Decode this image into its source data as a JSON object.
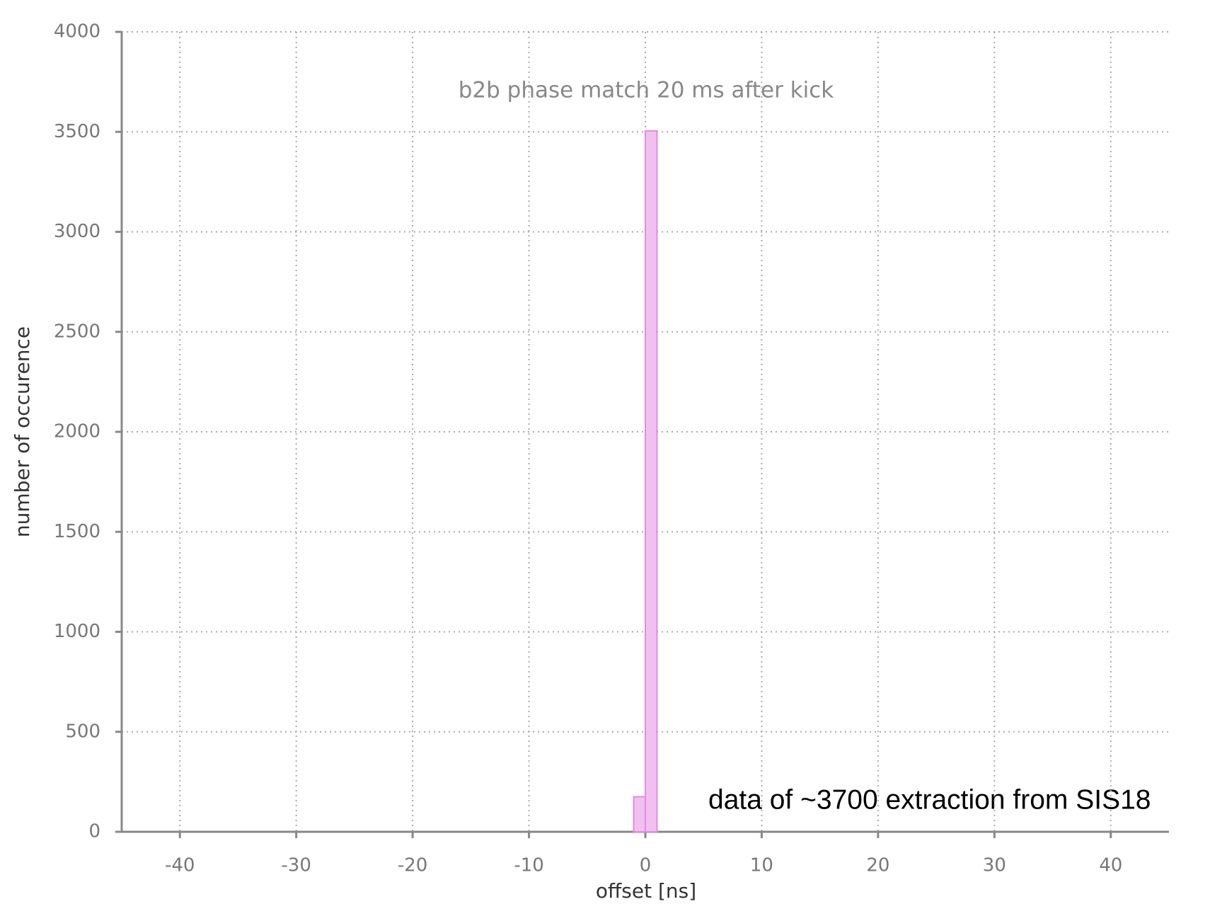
{
  "chart_data": {
    "type": "histogram",
    "title": "b2b phase match 20 ms after kick",
    "annotation": "data of ~3700 extraction from SIS18",
    "x_label": "offset [ns]",
    "y_label": "number of occurence",
    "bins": [
      -1,
      0,
      1
    ],
    "values": [
      175,
      3505
    ],
    "color": "#f2c0f0",
    "edge_color": "#e08ce0",
    "xlim": [
      -45,
      45
    ],
    "ylim": [
      0,
      4000
    ],
    "xticks": [
      -40,
      -30,
      -20,
      -10,
      0,
      10,
      20,
      30,
      40
    ],
    "yticks": [
      0,
      500,
      1000,
      1500,
      2000,
      2500,
      3000,
      3500,
      4000
    ],
    "grid": true
  }
}
